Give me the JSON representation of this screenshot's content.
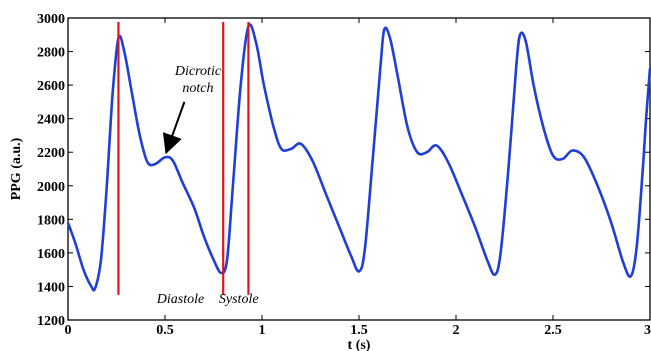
{
  "chart_data": {
    "type": "line",
    "title": "",
    "xlabel": "t (s)",
    "ylabel": "PPG (a.u.)",
    "xlim": [
      0,
      3
    ],
    "ylim": [
      1200,
      3000
    ],
    "grid": false,
    "line_color": "#1f3fd6",
    "marker_color": "#e0141b",
    "x_ticks": [
      0,
      0.5,
      1,
      1.5,
      2,
      2.5,
      3
    ],
    "x_tick_labels": [
      "0",
      "0.5",
      "1",
      "1.5",
      "2",
      "2.5",
      "3"
    ],
    "y_ticks": [
      1200,
      1400,
      1600,
      1800,
      2000,
      2200,
      2400,
      2600,
      2800,
      3000
    ],
    "y_tick_labels": [
      "1200",
      "1400",
      "1600",
      "1800",
      "2000",
      "2200",
      "2400",
      "2600",
      "2800",
      "3000"
    ],
    "series": [
      {
        "name": "",
        "x": [
          0,
          0.04,
          0.08,
          0.12,
          0.14,
          0.17,
          0.2,
          0.23,
          0.26,
          0.29,
          0.33,
          0.37,
          0.41,
          0.45,
          0.5,
          0.54,
          0.59,
          0.65,
          0.7,
          0.75,
          0.79,
          0.82,
          0.85,
          0.89,
          0.93,
          0.97,
          1.01,
          1.06,
          1.1,
          1.15,
          1.2,
          1.26,
          1.33,
          1.4,
          1.46,
          1.5,
          1.53,
          1.57,
          1.61,
          1.63,
          1.66,
          1.7,
          1.75,
          1.8,
          1.85,
          1.9,
          1.96,
          2.03,
          2.1,
          2.16,
          2.2,
          2.23,
          2.27,
          2.31,
          2.33,
          2.36,
          2.4,
          2.45,
          2.5,
          2.55,
          2.6,
          2.66,
          2.73,
          2.8,
          2.86,
          2.9,
          2.93,
          2.96,
          2.98,
          3.0
        ],
        "y": [
          1780,
          1650,
          1500,
          1400,
          1390,
          1560,
          2000,
          2550,
          2880,
          2800,
          2550,
          2300,
          2140,
          2130,
          2170,
          2150,
          2020,
          1870,
          1700,
          1560,
          1480,
          1560,
          2000,
          2600,
          2950,
          2850,
          2600,
          2350,
          2220,
          2220,
          2250,
          2150,
          1950,
          1750,
          1580,
          1490,
          1620,
          2150,
          2700,
          2930,
          2880,
          2650,
          2350,
          2200,
          2200,
          2240,
          2140,
          1950,
          1750,
          1560,
          1470,
          1600,
          2100,
          2700,
          2900,
          2860,
          2600,
          2350,
          2180,
          2160,
          2210,
          2170,
          2000,
          1780,
          1550,
          1460,
          1620,
          2050,
          2400,
          2700
        ]
      }
    ],
    "vertical_lines": [
      0.26,
      0.8,
      0.93
    ],
    "annotations": [
      {
        "text": "Dicrotic",
        "x": 0.67,
        "y": 2660
      },
      {
        "text": "notch",
        "x": 0.67,
        "y": 2560
      },
      {
        "text": "Diastole",
        "x": 0.58,
        "y": 1300
      },
      {
        "text": "Systole",
        "x": 0.88,
        "y": 1300
      }
    ],
    "arrow": {
      "from": [
        0.6,
        2500
      ],
      "to": [
        0.51,
        2210
      ]
    }
  }
}
